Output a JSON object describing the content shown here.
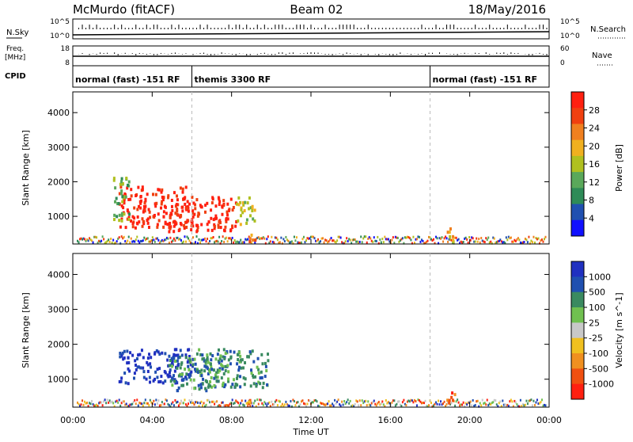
{
  "header": {
    "station": "McMurdo (fitACF)",
    "beam": "Beam 02",
    "date": "18/May/2016"
  },
  "strip_labels": {
    "nsky": "N.Sky",
    "freq_line1": "Freq.",
    "freq_line2": "[MHz]",
    "cpid": "CPID",
    "nsearch": "N.Search",
    "nave": "Nave",
    "nsky_ticks": [
      "10^5",
      "10^0"
    ],
    "freq_ticks": [
      "18",
      "8"
    ],
    "nsearch_ticks": [
      "10^5",
      "10^0"
    ],
    "nave_ticks": [
      "60",
      "0"
    ]
  },
  "cpid_segments": [
    {
      "label": "normal (fast) -151 RF",
      "start": 0.0,
      "end": 6.0
    },
    {
      "label": "themis 3300 RF",
      "start": 6.0,
      "end": 18.0
    },
    {
      "label": "normal (fast) -151 RF",
      "start": 18.0,
      "end": 24.0
    }
  ],
  "colors": {
    "power": [
      "#1010ff",
      "#2050b0",
      "#2e8b57",
      "#5aa85a",
      "#b0c020",
      "#f0b020",
      "#f08020",
      "#f04010",
      "#ff2010"
    ],
    "velocity": [
      "#2030c0",
      "#2050b0",
      "#3a8a60",
      "#70c050",
      "#c8c8c8",
      "#f0c020",
      "#f09020",
      "#f05010",
      "#ff2010"
    ]
  },
  "chart_data": [
    {
      "type": "heatmap",
      "name": "power",
      "ylabel": "Slant Range [km]",
      "yticks": [
        1000,
        2000,
        3000,
        4000
      ],
      "ylim": [
        200,
        4600
      ],
      "xlim": [
        0,
        24
      ],
      "colorbar_label": "Power [dB]",
      "colorbar_ticks": [
        4,
        8,
        12,
        16,
        20,
        24,
        28
      ],
      "regions": [
        {
          "t0": 2.3,
          "t1": 5.8,
          "r0": 700,
          "r1": 1900,
          "level": 8
        },
        {
          "t0": 4.5,
          "t1": 8.2,
          "r0": 600,
          "r1": 1600,
          "level": 8
        },
        {
          "t0": 2.0,
          "t1": 2.8,
          "r0": 900,
          "r1": 2200,
          "level": 3
        },
        {
          "t0": 8.2,
          "t1": 9.2,
          "r0": 800,
          "r1": 1600,
          "level": 4
        },
        {
          "t0": 8.5,
          "t1": 9.2,
          "r0": 300,
          "r1": 500,
          "level": 6
        },
        {
          "t0": 18.8,
          "t1": 19.3,
          "r0": 300,
          "r1": 700,
          "level": 5
        }
      ]
    },
    {
      "type": "heatmap",
      "name": "velocity",
      "ylabel": "Slant Range [km]",
      "yticks": [
        1000,
        2000,
        3000,
        4000
      ],
      "ylim": [
        200,
        4600
      ],
      "xlim": [
        0,
        24
      ],
      "xticks": [
        "00:00",
        "04:00",
        "08:00",
        "12:00",
        "16:00",
        "20:00",
        "00:00"
      ],
      "xlabel": "Time UT",
      "colorbar_label": "Velocity [m s^-1]",
      "colorbar_ticks": [
        "1000",
        "500",
        "100",
        "25",
        "-25",
        "-100",
        "-500",
        "-1000"
      ],
      "regions": [
        {
          "t0": 2.3,
          "t1": 6.0,
          "r0": 900,
          "r1": 1900,
          "level": 0
        },
        {
          "t0": 4.8,
          "t1": 7.8,
          "r0": 700,
          "r1": 1700,
          "level": 2
        },
        {
          "t0": 6.2,
          "t1": 9.8,
          "r0": 800,
          "r1": 1900,
          "level": 2
        },
        {
          "t0": 8.5,
          "t1": 9.2,
          "r0": 300,
          "r1": 500,
          "level": 6
        },
        {
          "t0": 18.8,
          "t1": 19.3,
          "r0": 300,
          "r1": 700,
          "level": 7
        }
      ]
    }
  ]
}
